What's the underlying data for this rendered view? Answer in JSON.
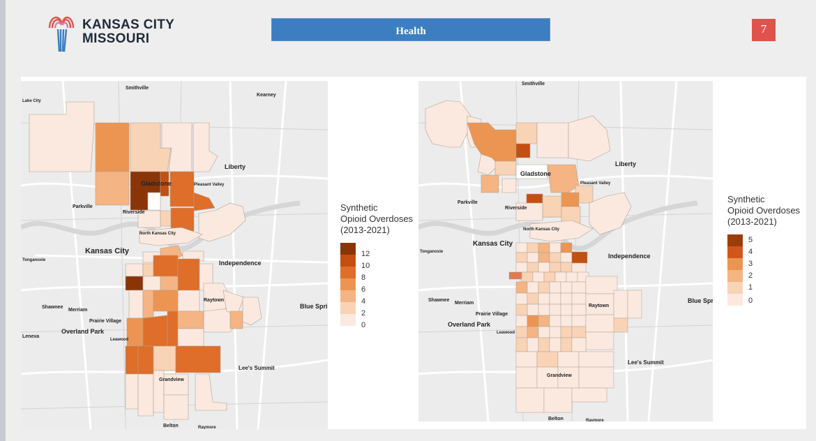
{
  "header": {
    "logo_text_line1": "KANSAS CITY",
    "logo_text_line2": "MISSOURI",
    "section_title": "Health",
    "page_number": "7"
  },
  "colors": {
    "brand_red": "#e0534d",
    "banner_blue": "#3d7ec0",
    "c0": "#fbe9e0",
    "c1": "#f9d3b6",
    "c2": "#f4b483",
    "c3": "#ec9553",
    "c4": "#de6e2a",
    "c5": "#c44f12",
    "c6": "#8a3508"
  },
  "left_map": {
    "legend_title_lines": [
      "Synthetic",
      "Opioid Overdoses",
      "(2013-2021)"
    ],
    "legend_labels": [
      "12",
      "10",
      "8",
      "6",
      "4",
      "2",
      "0"
    ],
    "places": [
      "Smithville",
      "Kearney",
      "Liberty",
      "Gladstone",
      "Pleasant Valley",
      "Parkville",
      "Riverside",
      "North Kansas City",
      "Kansas City",
      "Independence",
      "Shawnee",
      "Merriam",
      "Prairie Village",
      "Raytown",
      "Blue Springs",
      "Overland Park",
      "Leawood",
      "Lee's Summit",
      "Grandview",
      "Belton",
      "Raymore",
      "Lenexa",
      "Lake City",
      "Tonganoxie"
    ]
  },
  "right_map": {
    "legend_title_lines": [
      "Synthetic",
      "Opioid Overdoses",
      "(2013-2021)"
    ],
    "legend_labels": [
      "5",
      "4",
      "3",
      "2",
      "1",
      "0"
    ],
    "places": [
      "Smithville",
      "Liberty",
      "Gladstone",
      "Pleasant Valley",
      "Parkville",
      "Riverside",
      "North Kansas City",
      "Kansas City",
      "Independence",
      "Shawnee",
      "Merriam",
      "Prairie Village",
      "Raytown",
      "Blue Springs",
      "Overland Park",
      "Leawood",
      "Lee's Summit",
      "Grandview",
      "Belton",
      "Raymore",
      "Tonganoxie"
    ]
  }
}
